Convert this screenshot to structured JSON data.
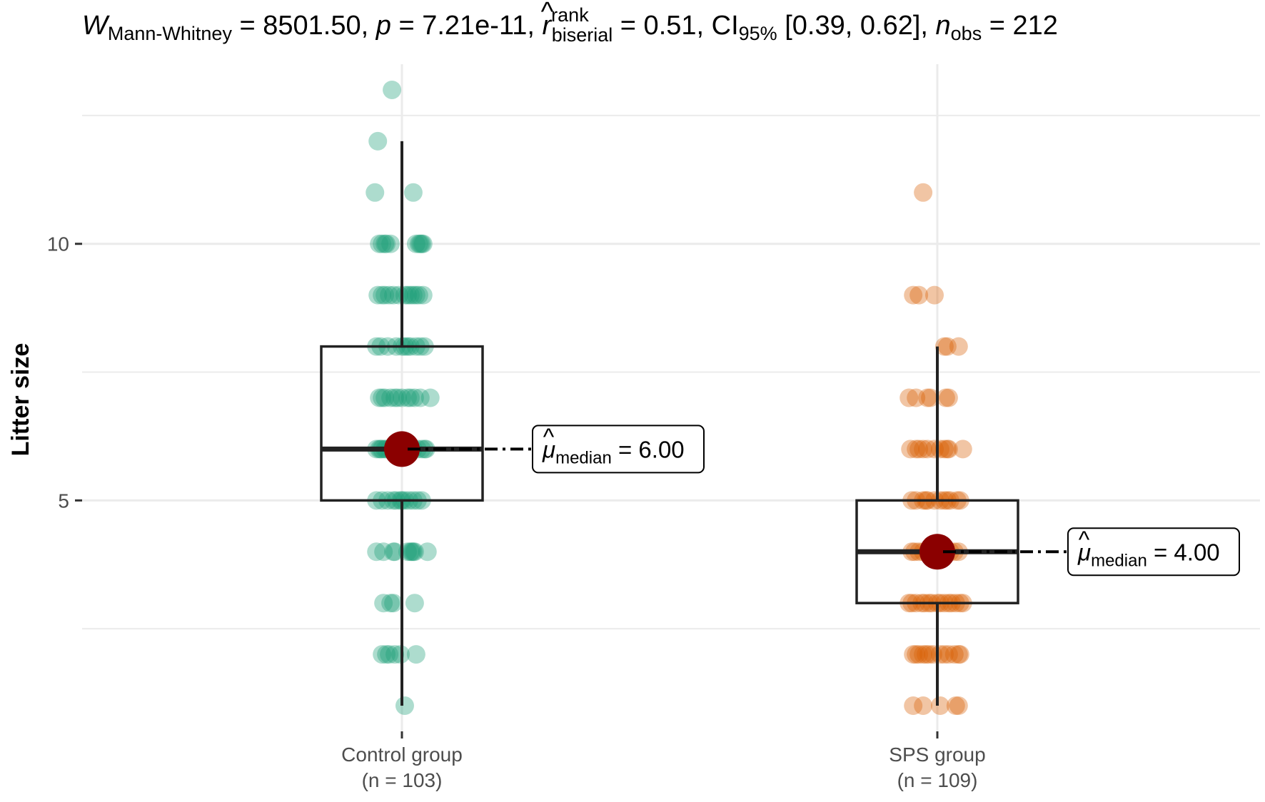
{
  "chart_data": {
    "type": "box",
    "title": {
      "w_symbol": "W",
      "w_sub": "Mann-Whitney",
      "w_val": " = 8501.50, ",
      "p_symbol": "p",
      "p_val": " = 7.21e-11, ",
      "r_symbol": "r",
      "r_hat": "^",
      "r_sup": "rank",
      "r_sub": "biserial",
      "r_val": " = 0.51, CI",
      "ci_sub": "95%",
      "ci_val": " [0.39, 0.62], ",
      "n_symbol": "n",
      "n_sub": "obs",
      "n_val": " = 212"
    },
    "xlabel": "",
    "ylabel": "Litter size",
    "ylim": [
      0.5,
      13.5
    ],
    "yticks": [
      5,
      10
    ],
    "ytick_labels": [
      "5",
      "10"
    ],
    "gridlines_y": [
      2.5,
      5,
      7.5,
      10,
      12.5
    ],
    "categories": [
      "Control group",
      "SPS group"
    ],
    "category_counts": [
      "(n = 103)",
      "(n = 109)"
    ],
    "boxes": [
      {
        "name": "Control group",
        "whisker_low": 1,
        "q1": 5,
        "median": 6,
        "q3": 8,
        "whisker_high": 12,
        "median_label": "μ",
        "median_label_sub": "median",
        "median_label_val": " = 6.00",
        "color": "#1b9e77"
      },
      {
        "name": "SPS group",
        "whisker_low": 1,
        "q1": 3,
        "median": 4,
        "q3": 5,
        "whisker_high": 8,
        "median_label": "μ",
        "median_label_sub": "median",
        "median_label_val": " = 4.00",
        "color": "#d95f02"
      }
    ],
    "points": [
      {
        "group": 0,
        "values": [
          [
            13,
            [
              -0.035
            ]
          ],
          [
            12,
            [
              -0.085
            ]
          ],
          [
            11,
            [
              -0.095,
              0.04
            ]
          ],
          [
            10,
            [
              -0.08,
              -0.07,
              -0.06,
              -0.055,
              -0.04,
              0.05,
              0.06,
              0.065,
              0.07,
              0.075
            ]
          ],
          [
            9,
            [
              -0.085,
              -0.07,
              -0.06,
              -0.045,
              -0.03,
              -0.01,
              0.01,
              0.02,
              0.03,
              0.04,
              0.05,
              0.06,
              0.075
            ]
          ],
          [
            8,
            [
              -0.09,
              -0.075,
              -0.05,
              -0.02,
              0.0,
              0.01,
              0.02,
              0.03,
              0.05,
              0.065,
              0.08
            ]
          ],
          [
            7,
            [
              -0.08,
              -0.07,
              -0.06,
              -0.04,
              -0.025,
              -0.015,
              0.0,
              0.02,
              0.03,
              0.045,
              0.065,
              0.1
            ]
          ],
          [
            6,
            [
              -0.09,
              -0.08,
              -0.075,
              -0.07,
              -0.06,
              -0.055,
              -0.045,
              -0.03,
              0.0,
              0.015,
              0.04,
              0.055,
              0.07,
              0.08,
              0.085
            ]
          ],
          [
            5,
            [
              -0.09,
              -0.07,
              -0.05,
              -0.03,
              -0.02,
              -0.005,
              0.0,
              0.01,
              0.025,
              0.04,
              0.055,
              0.07
            ]
          ],
          [
            4,
            [
              -0.09,
              -0.065,
              -0.03,
              -0.025,
              0.02,
              0.03,
              0.035,
              0.04,
              0.045,
              0.09
            ]
          ],
          [
            3,
            [
              -0.065,
              -0.04,
              -0.03,
              0.045
            ]
          ],
          [
            2,
            [
              -0.07,
              -0.055,
              -0.045,
              -0.025,
              -0.005,
              0.05
            ]
          ],
          [
            1,
            [
              0.01
            ]
          ]
        ]
      },
      {
        "group": 1,
        "values": [
          [
            11,
            [
              -0.05
            ]
          ],
          [
            9,
            [
              -0.085,
              -0.065,
              -0.01
            ]
          ],
          [
            8,
            [
              0.025,
              0.035,
              0.075
            ]
          ],
          [
            7,
            [
              -0.1,
              -0.075,
              -0.035,
              -0.025,
              0.03,
              0.04
            ]
          ],
          [
            6,
            [
              -0.095,
              -0.075,
              -0.065,
              -0.05,
              -0.035,
              -0.01,
              0.01,
              0.025,
              0.035,
              0.04,
              0.09
            ]
          ],
          [
            5,
            [
              -0.09,
              -0.075,
              -0.05,
              -0.04,
              -0.035,
              -0.01,
              0.01,
              0.025,
              0.035,
              0.045,
              0.07,
              0.08
            ]
          ],
          [
            4,
            [
              -0.09,
              -0.08,
              -0.065,
              -0.05,
              -0.035,
              -0.02,
              0.005,
              0.015,
              0.03,
              0.045,
              0.06,
              0.075
            ]
          ],
          [
            3,
            [
              -0.1,
              -0.09,
              -0.075,
              -0.055,
              -0.045,
              -0.03,
              -0.02,
              0.0,
              0.01,
              0.025,
              0.04,
              0.05,
              0.065,
              0.08,
              0.09
            ]
          ],
          [
            2,
            [
              -0.085,
              -0.075,
              -0.065,
              -0.05,
              -0.04,
              -0.03,
              -0.015,
              0.01,
              0.025,
              0.04,
              0.06,
              0.075,
              0.08
            ]
          ],
          [
            1,
            [
              -0.085,
              -0.05,
              0.01,
              0.065,
              0.075
            ]
          ]
        ]
      }
    ],
    "point_colors": [
      "#1b9e77",
      "#d95f02"
    ],
    "median_point_color": "#8b0000"
  }
}
